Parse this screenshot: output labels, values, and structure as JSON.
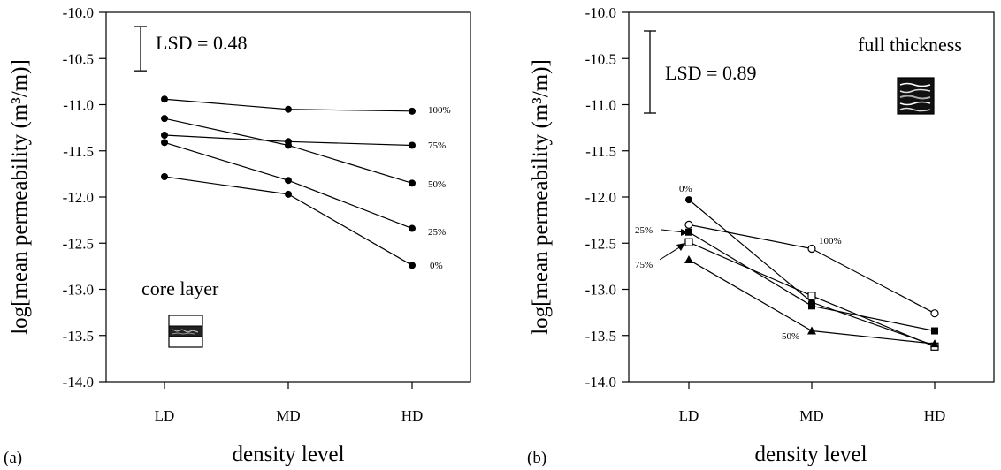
{
  "chart_data": [
    {
      "panel_label": "(a)",
      "type": "line",
      "xlabel": "density level",
      "ylabel": "log[mean permeability (m³/m)]",
      "categories": [
        "LD",
        "MD",
        "HD"
      ],
      "ylim": [
        -14.0,
        -10.0
      ],
      "yticks": [
        "-10.0",
        "-10.5",
        "-11.0",
        "-11.5",
        "-12.0",
        "-12.5",
        "-13.0",
        "-13.5",
        "-14.0"
      ],
      "grid": false,
      "annotations": {
        "lsd": "LSD = 0.48",
        "lsd_value": 0.48,
        "layer": "core layer"
      },
      "series": [
        {
          "name": "100%",
          "values": [
            -10.94,
            -11.05,
            -11.07
          ],
          "marker": "filled-circle"
        },
        {
          "name": "75%",
          "values": [
            -11.33,
            -11.4,
            -11.44
          ],
          "marker": "filled-circle"
        },
        {
          "name": "50%",
          "values": [
            -11.15,
            -11.44,
            -11.85
          ],
          "marker": "filled-circle"
        },
        {
          "name": "25%",
          "values": [
            -11.41,
            -11.82,
            -12.34
          ],
          "marker": "filled-circle"
        },
        {
          "name": "0%",
          "values": [
            -11.78,
            -11.97,
            -12.74
          ],
          "marker": "filled-circle"
        }
      ]
    },
    {
      "panel_label": "(b)",
      "type": "line",
      "xlabel": "density level",
      "ylabel": "log[mean permeability (m³/m)]",
      "categories": [
        "LD",
        "MD",
        "HD"
      ],
      "ylim": [
        -14.0,
        -10.0
      ],
      "yticks": [
        "-10.0",
        "-10.5",
        "-11.0",
        "-11.5",
        "-12.0",
        "-12.5",
        "-13.0",
        "-13.5",
        "-14.0"
      ],
      "grid": false,
      "annotations": {
        "lsd": "LSD = 0.89",
        "lsd_value": 0.89,
        "layer": "full thickness"
      },
      "series": [
        {
          "name": "0%",
          "values": [
            -12.03,
            -13.14,
            -13.61
          ],
          "marker": "filled-circle"
        },
        {
          "name": "100%",
          "values": [
            -12.3,
            -12.56,
            -13.26
          ],
          "marker": "open-circle"
        },
        {
          "name": "25%",
          "values": [
            -12.38,
            -13.18,
            -13.45
          ],
          "marker": "filled-square"
        },
        {
          "name": "75%",
          "values": [
            -12.49,
            -13.07,
            -13.62
          ],
          "marker": "open-square"
        },
        {
          "name": "50%",
          "values": [
            -12.68,
            -13.45,
            -13.59
          ],
          "marker": "filled-triangle"
        }
      ]
    }
  ]
}
